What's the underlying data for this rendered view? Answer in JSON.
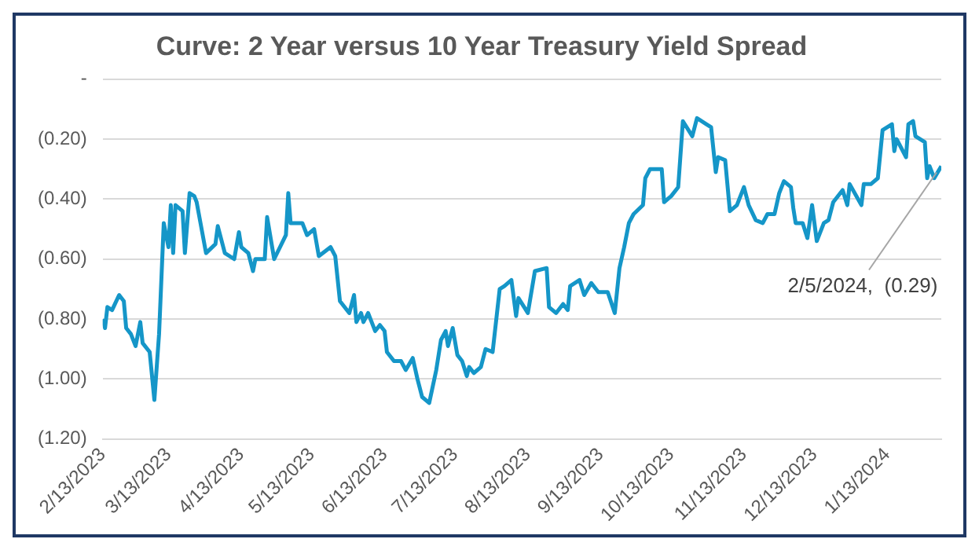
{
  "chart_data": {
    "type": "line",
    "title": "Curve: 2 Year versus 10 Year Treasury Yield Spread",
    "x": [
      "2023-02-13",
      "2023-02-14",
      "2023-02-15",
      "2023-02-17",
      "2023-02-20",
      "2023-02-22",
      "2023-02-23",
      "2023-02-25",
      "2023-02-27",
      "2023-03-01",
      "2023-03-02",
      "2023-03-05",
      "2023-03-07",
      "2023-03-09",
      "2023-03-11",
      "2023-03-13",
      "2023-03-14",
      "2023-03-15",
      "2023-03-16",
      "2023-03-19",
      "2023-03-20",
      "2023-03-22",
      "2023-03-24",
      "2023-03-25",
      "2023-03-29",
      "2023-04-02",
      "2023-04-03",
      "2023-04-06",
      "2023-04-10",
      "2023-04-12",
      "2023-04-13",
      "2023-04-16",
      "2023-04-18",
      "2023-04-19",
      "2023-04-23",
      "2023-04-24",
      "2023-04-27",
      "2023-05-02",
      "2023-05-03",
      "2023-05-04",
      "2023-05-09",
      "2023-05-11",
      "2023-05-14",
      "2023-05-16",
      "2023-05-21",
      "2023-05-23",
      "2023-05-25",
      "2023-05-29",
      "2023-05-31",
      "2023-06-01",
      "2023-06-03",
      "2023-06-04",
      "2023-06-06",
      "2023-06-09",
      "2023-06-11",
      "2023-06-13",
      "2023-06-14",
      "2023-06-17",
      "2023-06-20",
      "2023-06-22",
      "2023-06-25",
      "2023-06-27",
      "2023-06-29",
      "2023-07-02",
      "2023-07-05",
      "2023-07-07",
      "2023-07-09",
      "2023-07-10",
      "2023-07-12",
      "2023-07-14",
      "2023-07-16",
      "2023-07-18",
      "2023-07-19",
      "2023-07-21",
      "2023-07-24",
      "2023-07-26",
      "2023-07-29",
      "2023-08-01",
      "2023-08-03",
      "2023-08-06",
      "2023-08-08",
      "2023-08-09",
      "2023-08-13",
      "2023-08-16",
      "2023-08-21",
      "2023-08-22",
      "2023-08-25",
      "2023-08-28",
      "2023-08-30",
      "2023-08-31",
      "2023-09-04",
      "2023-09-06",
      "2023-09-09",
      "2023-09-12",
      "2023-09-16",
      "2023-09-19",
      "2023-09-21",
      "2023-09-23",
      "2023-09-25",
      "2023-09-27",
      "2023-10-01",
      "2023-10-02",
      "2023-10-04",
      "2023-10-05",
      "2023-10-09",
      "2023-10-10",
      "2023-10-13",
      "2023-10-16",
      "2023-10-18",
      "2023-10-22",
      "2023-10-24",
      "2023-10-28",
      "2023-10-30",
      "2023-11-01",
      "2023-11-02",
      "2023-11-05",
      "2023-11-07",
      "2023-11-10",
      "2023-11-13",
      "2023-11-15",
      "2023-11-18",
      "2023-11-21",
      "2023-11-23",
      "2023-11-26",
      "2023-11-28",
      "2023-11-30",
      "2023-12-03",
      "2023-12-04",
      "2023-12-05",
      "2023-12-08",
      "2023-12-10",
      "2023-12-12",
      "2023-12-14",
      "2023-12-17",
      "2023-12-19",
      "2023-12-21",
      "2023-12-25",
      "2023-12-27",
      "2023-12-28",
      "2024-01-02",
      "2024-01-03",
      "2024-01-06",
      "2024-01-09",
      "2024-01-11",
      "2024-01-15",
      "2024-01-16",
      "2024-01-17",
      "2024-01-21",
      "2024-01-22",
      "2024-01-24",
      "2024-01-25",
      "2024-01-29",
      "2024-01-30",
      "2024-01-31",
      "2024-02-02",
      "2024-02-05"
    ],
    "series": [
      {
        "color": "#1596c8",
        "values": [
          -0.8,
          -0.83,
          -0.76,
          -0.77,
          -0.72,
          -0.74,
          -0.83,
          -0.85,
          -0.89,
          -0.81,
          -0.88,
          -0.91,
          -1.07,
          -0.85,
          -0.48,
          -0.56,
          -0.42,
          -0.58,
          -0.42,
          -0.44,
          -0.58,
          -0.38,
          -0.39,
          -0.41,
          -0.58,
          -0.55,
          -0.49,
          -0.58,
          -0.6,
          -0.51,
          -0.56,
          -0.58,
          -0.64,
          -0.6,
          -0.6,
          -0.46,
          -0.6,
          -0.52,
          -0.38,
          -0.48,
          -0.48,
          -0.52,
          -0.5,
          -0.59,
          -0.56,
          -0.59,
          -0.74,
          -0.78,
          -0.72,
          -0.81,
          -0.78,
          -0.81,
          -0.78,
          -0.84,
          -0.82,
          -0.84,
          -0.91,
          -0.94,
          -0.94,
          -0.97,
          -0.93,
          -1.0,
          -1.06,
          -1.08,
          -0.97,
          -0.87,
          -0.84,
          -0.89,
          -0.83,
          -0.92,
          -0.94,
          -0.99,
          -0.96,
          -0.98,
          -0.96,
          -0.9,
          -0.91,
          -0.7,
          -0.69,
          -0.67,
          -0.79,
          -0.73,
          -0.78,
          -0.64,
          -0.63,
          -0.76,
          -0.78,
          -0.75,
          -0.77,
          -0.69,
          -0.67,
          -0.72,
          -0.68,
          -0.71,
          -0.71,
          -0.78,
          -0.63,
          -0.56,
          -0.48,
          -0.45,
          -0.42,
          -0.33,
          -0.3,
          -0.3,
          -0.3,
          -0.41,
          -0.39,
          -0.36,
          -0.14,
          -0.19,
          -0.13,
          -0.15,
          -0.16,
          -0.31,
          -0.26,
          -0.27,
          -0.44,
          -0.42,
          -0.36,
          -0.42,
          -0.47,
          -0.48,
          -0.45,
          -0.45,
          -0.38,
          -0.34,
          -0.36,
          -0.43,
          -0.48,
          -0.48,
          -0.53,
          -0.42,
          -0.54,
          -0.48,
          -0.47,
          -0.41,
          -0.37,
          -0.42,
          -0.35,
          -0.42,
          -0.35,
          -0.35,
          -0.33,
          -0.17,
          -0.15,
          -0.24,
          -0.2,
          -0.26,
          -0.15,
          -0.14,
          -0.19,
          -0.21,
          -0.33,
          -0.29,
          -0.33,
          -0.29
        ]
      }
    ],
    "xlim": [
      "2023-02-13",
      "2024-02-05"
    ],
    "xticks": [
      {
        "value": "2023-02-13",
        "label": "2/13/2023"
      },
      {
        "value": "2023-03-13",
        "label": "3/13/2023"
      },
      {
        "value": "2023-04-13",
        "label": "4/13/2023"
      },
      {
        "value": "2023-05-13",
        "label": "5/13/2023"
      },
      {
        "value": "2023-06-13",
        "label": "6/13/2023"
      },
      {
        "value": "2023-07-13",
        "label": "7/13/2023"
      },
      {
        "value": "2023-08-13",
        "label": "8/13/2023"
      },
      {
        "value": "2023-09-13",
        "label": "9/13/2023"
      },
      {
        "value": "2023-10-13",
        "label": "10/13/2023"
      },
      {
        "value": "2023-11-13",
        "label": "11/13/2023"
      },
      {
        "value": "2023-12-13",
        "label": "12/13/2023"
      },
      {
        "value": "2024-01-13",
        "label": "1/13/2024"
      }
    ],
    "ylim": [
      -1.2,
      0
    ],
    "yticks": [
      {
        "value": 0,
        "label": "-"
      },
      {
        "value": -0.2,
        "label": "(0.20)"
      },
      {
        "value": -0.4,
        "label": "(0.40)"
      },
      {
        "value": -0.6,
        "label": "(0.60)"
      },
      {
        "value": -0.8,
        "label": "(0.80)"
      },
      {
        "value": -1.0,
        "label": "(1.00)"
      },
      {
        "value": -1.2,
        "label": "(1.20)"
      }
    ],
    "grid": "y",
    "legend": false,
    "marker": "none",
    "line_style": "solid",
    "annotations": [
      {
        "text": "2/5/2024,  (0.29)",
        "x": "2024-02-05",
        "y": -0.29
      }
    ]
  }
}
